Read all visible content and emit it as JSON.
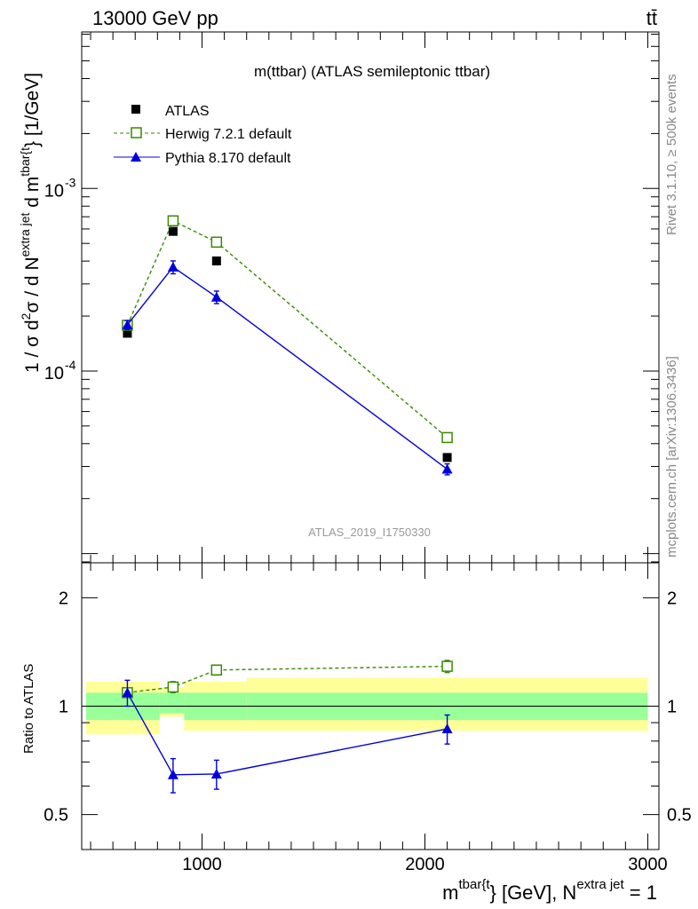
{
  "header": {
    "left": "13000 GeV pp",
    "right": "tt̄"
  },
  "side": {
    "rivet": "Rivet 3.1.10, ≥ 500k events",
    "mcplots": "mcplots.cern.ch [arXiv:1306.3436]"
  },
  "axes": {
    "ylabel_main": "1 / σ d²σ / d N^{extra jet} d m^{tbar{t}} [1/GeV]",
    "ylabel_main_parts": {
      "a": "1 / σ d",
      "b": "σ / d N",
      "c": "d m",
      "d": "} [1/GeV]",
      "sup2": "2",
      "supjet": "extra jet",
      "supt": "tbar{t"
    },
    "ylabel_ratio": "Ratio to ATLAS",
    "xlabel": "m^{tbar{t}} [GeV], N^{extra jet} = 1",
    "xlabel_parts": {
      "m": "m",
      "supt": "tbar{t",
      "mid": "} [GeV], N",
      "supjet": "extra jet",
      "end": " = 1"
    },
    "main_ticks": [
      {
        "value": 0.001,
        "label": "10",
        "exp": "-3"
      },
      {
        "value": 0.0001,
        "label": "10",
        "exp": "-4"
      }
    ],
    "ratio_ticks": [
      {
        "value": 2,
        "label": "2"
      },
      {
        "value": 1,
        "label": "1"
      },
      {
        "value": 0.5,
        "label": "0.5"
      }
    ],
    "x_ticks": [
      {
        "value": 1000,
        "label": "1000"
      },
      {
        "value": 2000,
        "label": "2000"
      },
      {
        "value": 3000,
        "label": "3000"
      }
    ]
  },
  "chart_data": {
    "type": "scatter",
    "title": "m(ttbar) (ATLAS semileptonic ttbar)",
    "watermark": "ATLAS_2019_I1750330",
    "xlim": [
      460,
      3050
    ],
    "ylim_main": [
      8.9e-06,
      0.0072
    ],
    "ylim_ratio": [
      0.4,
      2.5
    ],
    "yscale": "log",
    "bins": [
      {
        "lo": 480,
        "hi": 810
      },
      {
        "lo": 810,
        "hi": 920
      },
      {
        "lo": 920,
        "hi": 1200
      },
      {
        "lo": 1200,
        "hi": 3000
      }
    ],
    "x": [
      665,
      870,
      1065,
      2100
    ],
    "ratio_band_inner": [
      [
        0.915,
        1.09
      ],
      [
        0.955,
        1.09
      ],
      [
        0.915,
        1.09
      ],
      [
        0.915,
        1.09
      ]
    ],
    "ratio_band_outer": [
      [
        0.835,
        1.17
      ],
      [
        0.935,
        1.13
      ],
      [
        0.855,
        1.17
      ],
      [
        0.855,
        1.2
      ]
    ],
    "series": [
      {
        "name": "ATLAS",
        "style": "data",
        "color": "#000000",
        "values": [
          0.000161,
          0.000582,
          0.000401,
          3.36e-05
        ],
        "ratio": [
          1,
          1,
          1,
          1
        ]
      },
      {
        "name": "Herwig 7.2.1 default",
        "style": "dashed-open-square",
        "color": "#3a8a00",
        "values": [
          0.000178,
          0.000665,
          0.000508,
          4.32e-05
        ],
        "errors": [
          8e-06,
          2e-05,
          1.5e-05,
          1.5e-06
        ],
        "ratio": [
          1.09,
          1.13,
          1.26,
          1.29
        ],
        "ratio_errors": [
          0.03,
          0.04,
          0.04,
          0.05
        ]
      },
      {
        "name": "Pythia 8.170 default",
        "style": "solid-triangle",
        "color": "#0000dd",
        "values": [
          0.000179,
          0.000371,
          0.000254,
          2.9e-05
        ],
        "errors": [
          1e-05,
          3e-05,
          2e-05,
          2e-06
        ],
        "ratio": [
          1.09,
          0.645,
          0.648,
          0.865
        ],
        "ratio_errors": [
          0.09,
          0.07,
          0.06,
          0.08
        ]
      }
    ]
  }
}
